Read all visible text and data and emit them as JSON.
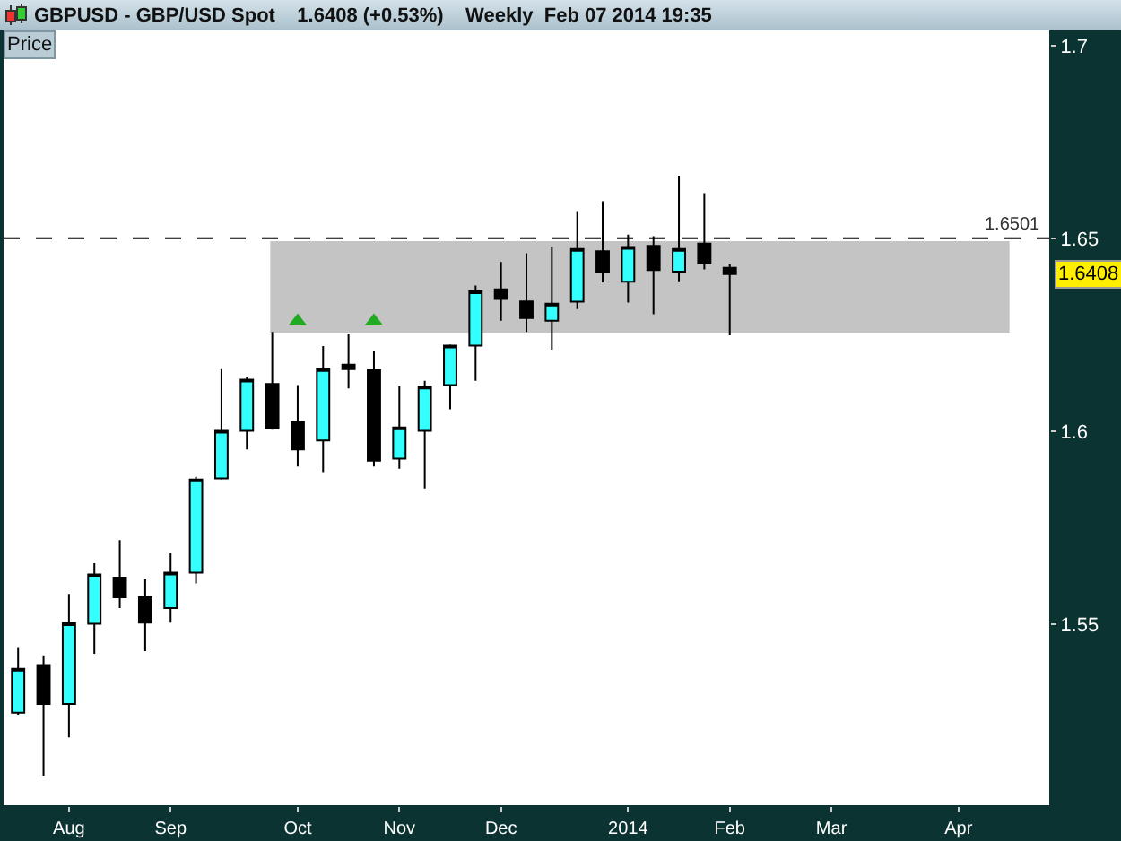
{
  "chart_data": {
    "type": "candlestick",
    "title": "GBPUSD - GBP/USD Spot    1.6408 (+0.53%)    Weekly  Feb 07 2014 19:35",
    "x": [
      "2013-07-22",
      "2013-07-29",
      "2013-08-05",
      "2013-08-12",
      "2013-08-19",
      "2013-08-26",
      "2013-09-02",
      "2013-09-09",
      "2013-09-16",
      "2013-09-23",
      "2013-09-30",
      "2013-10-07",
      "2013-10-14",
      "2013-10-21",
      "2013-10-28",
      "2013-11-04",
      "2013-11-11",
      "2013-11-18",
      "2013-11-25",
      "2013-12-02",
      "2013-12-09",
      "2013-12-16",
      "2013-12-23",
      "2013-12-30",
      "2014-01-06",
      "2014-01-13",
      "2014-01-20",
      "2014-01-27",
      "2014-02-03"
    ],
    "ohlc": [
      [
        1.527,
        1.5438,
        1.5264,
        1.5384
      ],
      [
        1.5392,
        1.5417,
        1.5106,
        1.5293
      ],
      [
        1.5293,
        1.5576,
        1.5206,
        1.5502
      ],
      [
        1.5501,
        1.5658,
        1.5423,
        1.5629
      ],
      [
        1.562,
        1.5718,
        1.5542,
        1.557
      ],
      [
        1.557,
        1.5616,
        1.543,
        1.5504
      ],
      [
        1.5542,
        1.5684,
        1.5504,
        1.5634
      ],
      [
        1.5634,
        1.5882,
        1.5606,
        1.5875
      ],
      [
        1.5878,
        1.6161,
        1.5875,
        1.6001
      ],
      [
        1.6001,
        1.614,
        1.5953,
        1.6134
      ],
      [
        1.6123,
        1.6258,
        1.6004,
        1.6007
      ],
      [
        1.6024,
        1.612,
        1.5909,
        1.5953
      ],
      [
        1.5976,
        1.6221,
        1.5894,
        1.6161
      ],
      [
        1.6173,
        1.6253,
        1.6111,
        1.6161
      ],
      [
        1.6158,
        1.6207,
        1.5909,
        1.5924
      ],
      [
        1.5929,
        1.6117,
        1.5903,
        1.601
      ],
      [
        1.6001,
        1.6131,
        1.5852,
        1.6116
      ],
      [
        1.612,
        1.6225,
        1.6057,
        1.6222
      ],
      [
        1.6222,
        1.6378,
        1.6131,
        1.6363
      ],
      [
        1.6368,
        1.6439,
        1.6287,
        1.6343
      ],
      [
        1.6337,
        1.6462,
        1.6258,
        1.6294
      ],
      [
        1.6287,
        1.6479,
        1.6212,
        1.6331
      ],
      [
        1.6336,
        1.6571,
        1.6317,
        1.6473
      ],
      [
        1.6467,
        1.6597,
        1.6386,
        1.6414
      ],
      [
        1.6388,
        1.651,
        1.6334,
        1.6478
      ],
      [
        1.6481,
        1.6506,
        1.6304,
        1.6418
      ],
      [
        1.6414,
        1.6663,
        1.6389,
        1.6473
      ],
      [
        1.6487,
        1.6618,
        1.642,
        1.6435
      ],
      [
        1.6424,
        1.6433,
        1.6249,
        1.6408
      ]
    ],
    "colors": [
      "#33ffff",
      "#000000",
      "#33ffff",
      "#33ffff",
      "#000000",
      "#000000",
      "#33ffff",
      "#33ffff",
      "#33ffff",
      "#33ffff",
      "#000000",
      "#000000",
      "#33ffff",
      "#000000",
      "#000000",
      "#33ffff",
      "#33ffff",
      "#33ffff",
      "#33ffff",
      "#000000",
      "#000000",
      "#33ffff",
      "#33ffff",
      "#000000",
      "#33ffff",
      "#000000",
      "#33ffff",
      "#000000",
      "#000000"
    ],
    "series": [
      {
        "type": "scatter",
        "x": [
          "2013-10-07",
          "2013-10-28"
        ],
        "values": [
          1.6285,
          1.6285
        ],
        "color": "#22aa22"
      }
    ],
    "marker": "triangle",
    "xlim": [
      "2013-07-18",
      "2014-05-02"
    ],
    "xticks": [
      {
        "value": "2013-08-05",
        "label": "Aug"
      },
      {
        "value": "2013-09-02",
        "label": "Sep"
      },
      {
        "value": "2013-10-07",
        "label": "Oct"
      },
      {
        "value": "2013-11-04",
        "label": "Nov"
      },
      {
        "value": "2013-12-02",
        "label": "Dec"
      },
      {
        "value": "2014-01-06",
        "label": "2014"
      },
      {
        "value": "2014-02-03",
        "label": "Feb"
      },
      {
        "value": "2014-03-03",
        "label": "Mar"
      },
      {
        "value": "2014-04-07",
        "label": "Apr"
      }
    ],
    "ylim": [
      1.503,
      1.704
    ],
    "yticks": [
      1.55,
      1.6,
      1.65,
      1.7
    ],
    "grid": false,
    "ref_lines": [
      {
        "axis": "y",
        "value": 1.6501,
        "label": "1.6501",
        "color": "#000000",
        "line_style": "dashed"
      }
    ],
    "bands": [
      {
        "axis": "y",
        "from": 1.6256,
        "to": 1.6493,
        "color": "#c4c4c4"
      }
    ],
    "annotations": [
      "Price",
      "1.6408"
    ]
  }
}
